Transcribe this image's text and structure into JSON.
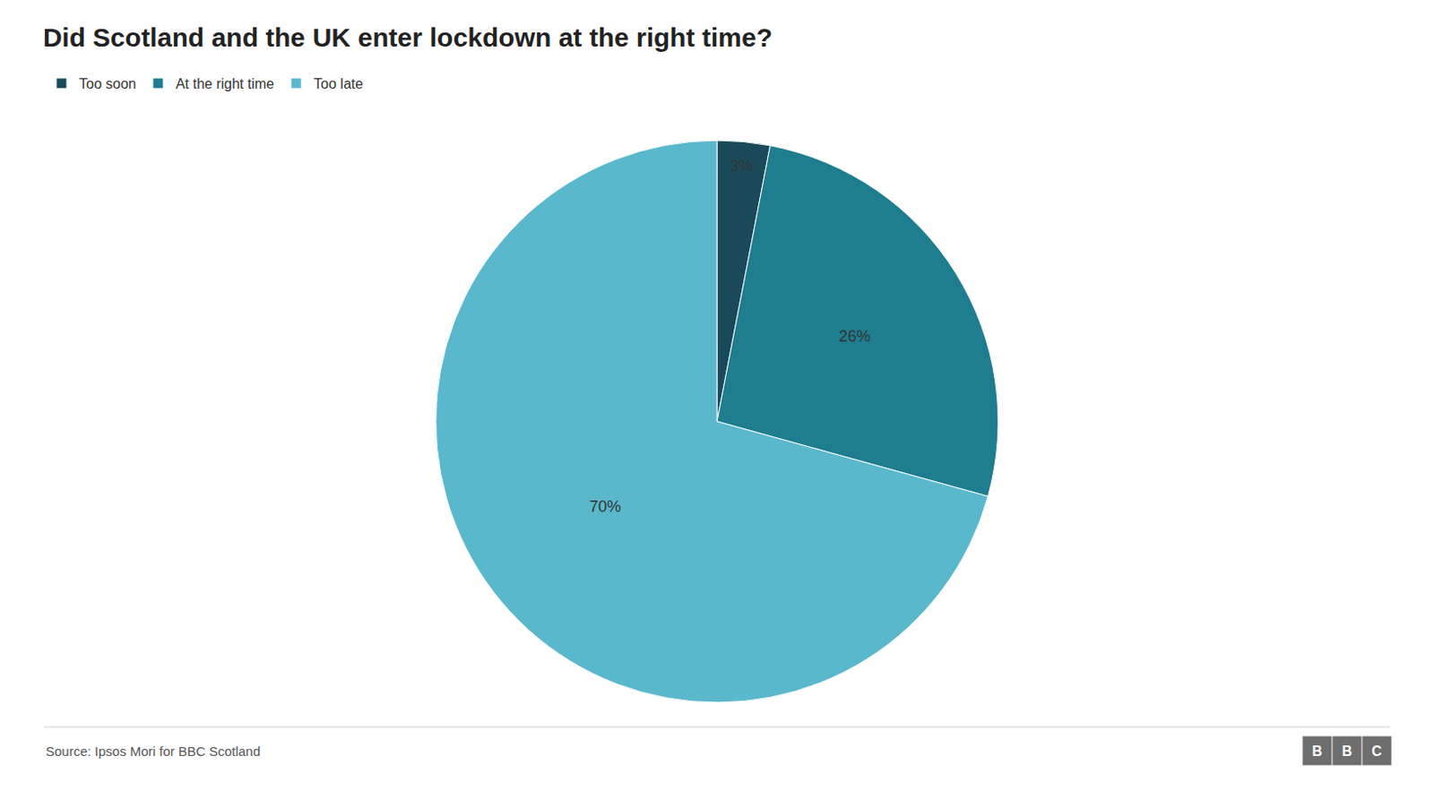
{
  "chart_data": {
    "type": "pie",
    "title": "Did Scotland and the UK enter lockdown at the right time?",
    "categories": [
      "Too soon",
      "At the right time",
      "Too late"
    ],
    "values": [
      3,
      26,
      70
    ],
    "value_labels": [
      "3%",
      "26%",
      "70%"
    ],
    "colors": [
      "#1a4a5a",
      "#1e7d8f",
      "#5ab8cc"
    ],
    "data_labels": true,
    "legend": "top left",
    "annotations": [
      "Source: Ipsos Mori for BBC Scotland",
      "BBC"
    ]
  }
}
